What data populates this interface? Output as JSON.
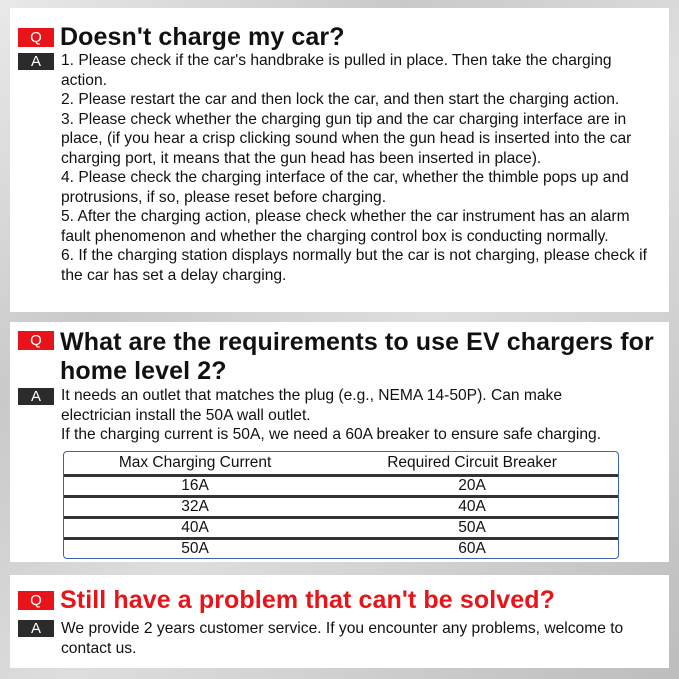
{
  "faq": [
    {
      "q_badge": "Q",
      "a_badge": "A",
      "question": "Doesn't charge my car?",
      "answer": [
        "1. Please check if the car's handbrake is pulled in place. Then take the charging action.",
        "2. Please restart the car and then lock the car, and then start the charging action.",
        "3. Please check whether the charging gun tip and the car charging interface are in place, (if you hear a crisp clicking sound when the gun head is inserted into the car charging port, it means that the gun head has been inserted in place).",
        "4. Please check the charging interface of the car, whether the thimble pops up and protrusions, if so, please reset before charging.",
        "5. After the charging action, please check whether the car instrument has an alarm fault phenomenon and whether the charging control box is conducting normally.",
        "6. If the charging station displays normally but the car is not charging, please check if the car has set a delay charging."
      ]
    },
    {
      "q_badge": "Q",
      "a_badge": "A",
      "question": "What are the requirements to use EV chargers for home level 2?",
      "answer": [
        "It needs an outlet that matches the plug (e.g., NEMA 14-50P). Can make electrician install the 50A wall outlet.",
        "If the charging current is 50A, we need a 60A breaker to ensure safe charging."
      ],
      "table": {
        "headers": [
          "Max Charging Current",
          "Required Circuit Breaker"
        ],
        "rows": [
          [
            "16A",
            "20A"
          ],
          [
            "32A",
            "40A"
          ],
          [
            "40A",
            "50A"
          ],
          [
            "50A",
            "60A"
          ]
        ]
      }
    },
    {
      "q_badge": "Q",
      "a_badge": "A",
      "question": "Still have a problem that can't be solved?",
      "answer": [
        "We provide 2 years customer service. If you encounter any problems, welcome to contact us."
      ]
    }
  ]
}
